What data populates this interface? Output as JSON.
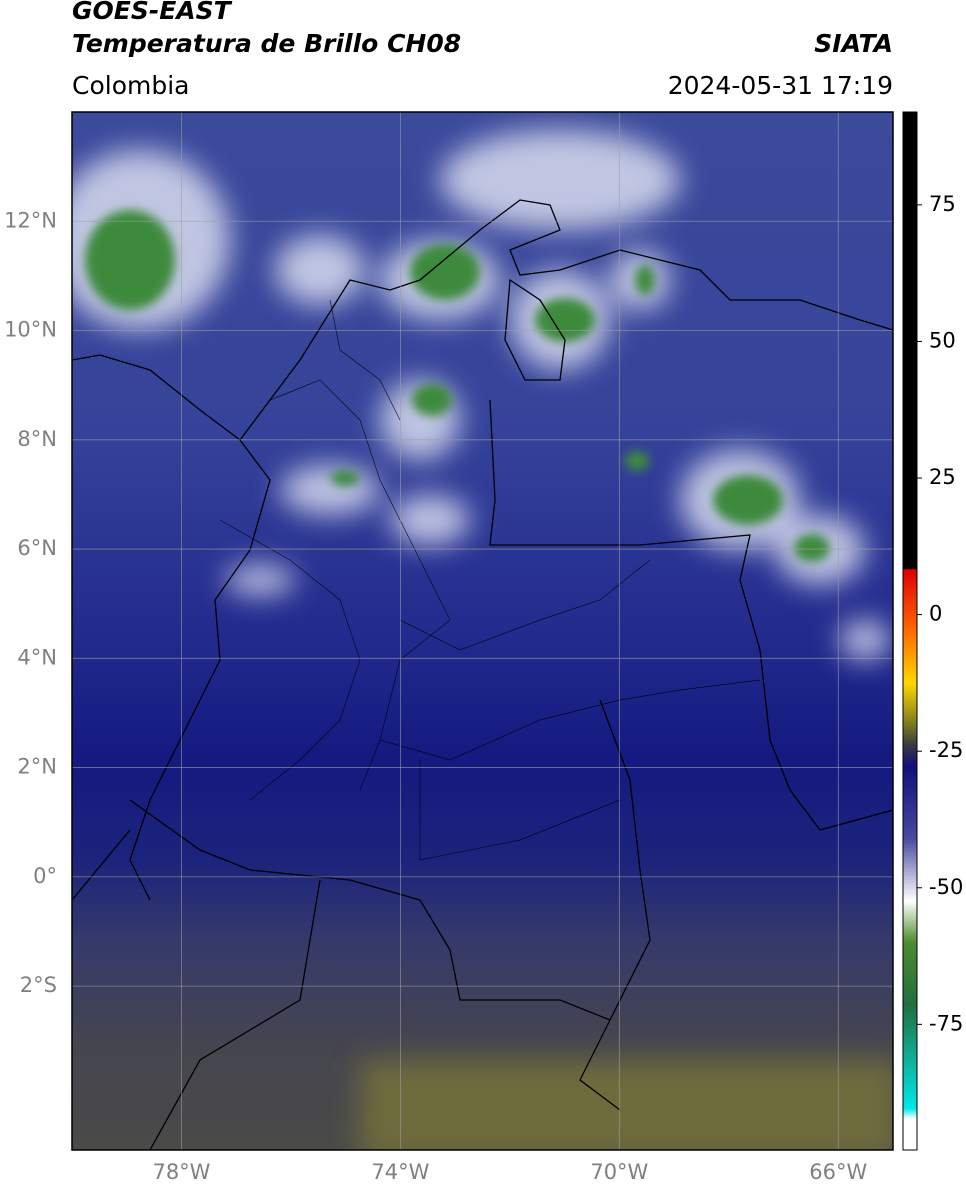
{
  "header": {
    "satellite": "GOES-EAST",
    "product": "Temperatura de Brillo CH08",
    "source": "SIATA",
    "region": "Colombia",
    "datetime": "2024-05-31 17:19"
  },
  "map": {
    "latlim": [
      -5,
      14
    ],
    "lonlim": [
      -80,
      -65
    ],
    "lat_ticks": [
      {
        "value": 12,
        "label": "12°N"
      },
      {
        "value": 10,
        "label": "10°N"
      },
      {
        "value": 8,
        "label": "8°N"
      },
      {
        "value": 6,
        "label": "6°N"
      },
      {
        "value": 4,
        "label": "4°N"
      },
      {
        "value": 2,
        "label": "2°N"
      },
      {
        "value": 0,
        "label": "0°"
      },
      {
        "value": -2,
        "label": "2°S"
      }
    ],
    "lon_ticks": [
      {
        "value": -78,
        "label": "78°W"
      },
      {
        "value": -74,
        "label": "74°W"
      },
      {
        "value": -70,
        "label": "70°W"
      },
      {
        "value": -66,
        "label": "66°W"
      }
    ]
  },
  "colorbar": {
    "lim": [
      -98,
      92
    ],
    "ticks": [
      75,
      50,
      25,
      0,
      -25,
      -50,
      -75
    ]
  }
}
